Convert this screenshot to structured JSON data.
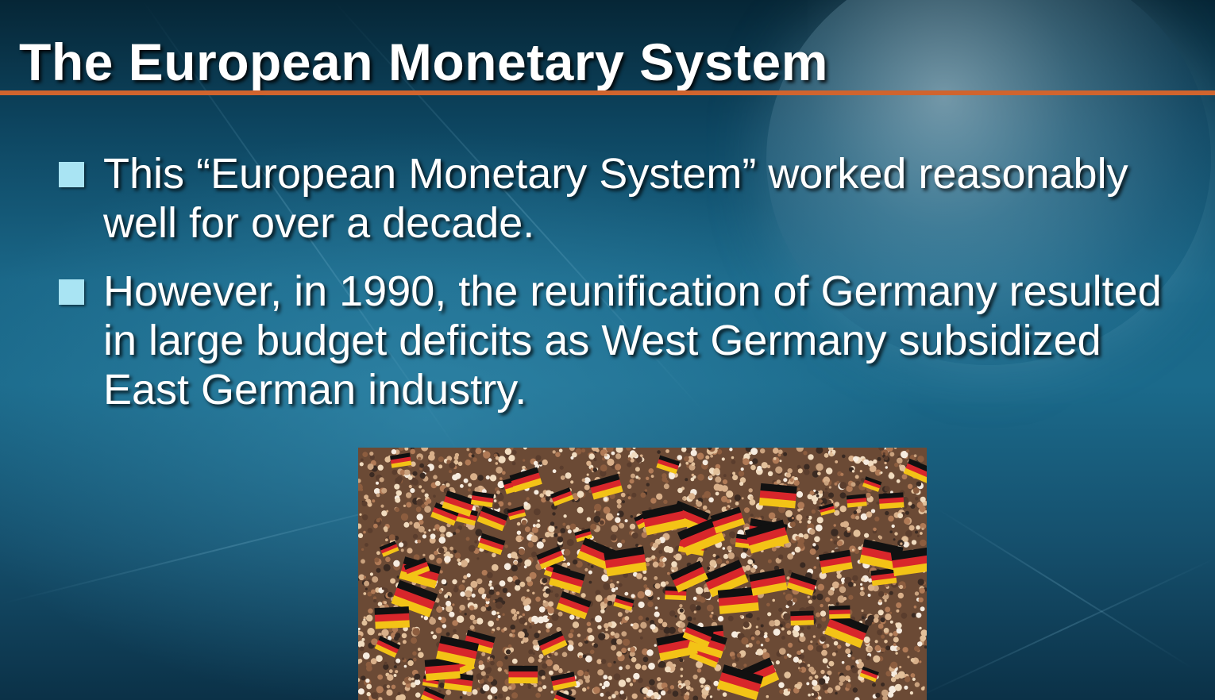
{
  "slide": {
    "title": "The European Monetary System",
    "bullets": [
      {
        "text": "This “European Monetary System” worked reasonably well for over a decade."
      },
      {
        "text": "However, in 1990, the reunification of Germany resulted in large budget deficits as West Germany subsidized East German industry."
      }
    ],
    "photo": {
      "subject": "crowd-waving-german-flags",
      "flag_colors": [
        "#111111",
        "#d8262b",
        "#f3c316"
      ]
    }
  },
  "colors": {
    "title_rule": "#d0642e",
    "bullet_marker": "#a9e4f3",
    "background_mid": "#1b6a8b"
  }
}
